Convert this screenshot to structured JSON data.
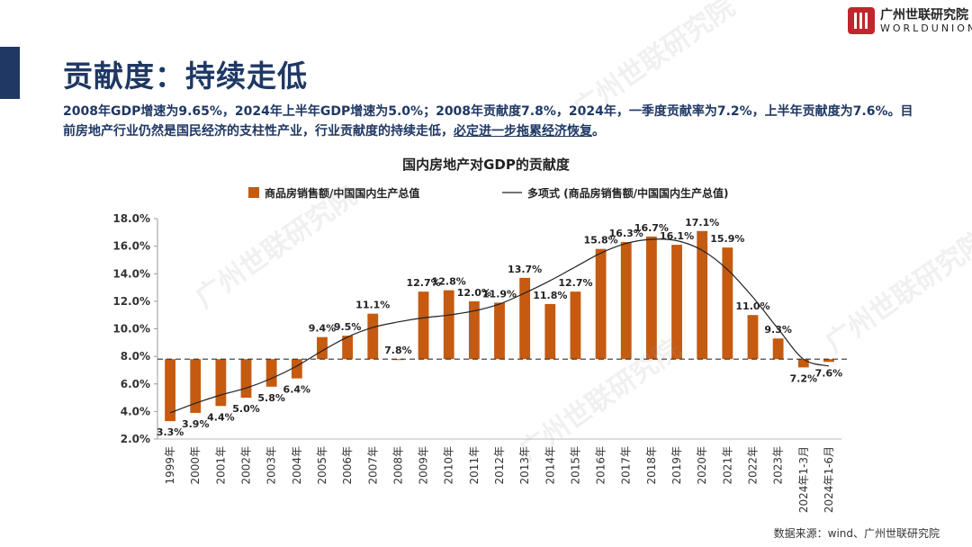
{
  "header": {
    "title": "贡献度：持续走低",
    "desc_main": "2008年GDP增速为9.65%，2024年上半年GDP增速为5.0%；2008年贡献度7.8%，2024年，一季度贡献率为7.2%，上半年贡献度为7.6%。目前房地产行业仍然是国民经济的支柱性产业，行业贡献度的持续走低，",
    "desc_emph": "必定进一步拖累经济恢复",
    "desc_end": "。"
  },
  "logo": {
    "cn": "广州世联研究院",
    "en": "WORLDUNION"
  },
  "watermark": "广州世联研究院",
  "source": "数据来源：wind、广州世联研究院",
  "colors": {
    "bar": "#c55a11",
    "line": "#222222",
    "navy": "#1f3864",
    "brand": "#c0262d"
  },
  "chart_data": {
    "type": "bar",
    "title": "国内房地产对GDP的贡献度",
    "legend": {
      "bar": "商品房销售额/中国国内生产总值",
      "line": "多项式 (商品房销售额/中国国内生产总值)"
    },
    "categories": [
      "1999年",
      "2000年",
      "2001年",
      "2002年",
      "2003年",
      "2004年",
      "2005年",
      "2006年",
      "2007年",
      "2008年",
      "2009年",
      "2010年",
      "2011年",
      "2012年",
      "2013年",
      "2014年",
      "2015年",
      "2016年",
      "2017年",
      "2018年",
      "2019年",
      "2020年",
      "2021年",
      "2022年",
      "2023年",
      "2024年1-3月",
      "2024年1-6月"
    ],
    "values": [
      3.3,
      3.9,
      4.4,
      5.0,
      5.8,
      6.4,
      9.4,
      9.5,
      11.1,
      7.8,
      12.7,
      12.8,
      12.0,
      11.9,
      13.7,
      11.8,
      12.7,
      15.8,
      16.3,
      16.7,
      16.1,
      17.1,
      15.9,
      11.0,
      9.3,
      7.2,
      7.6
    ],
    "labels": [
      "3.3%",
      "3.9%",
      "4.4%",
      "5.0%",
      "5.8%",
      "6.4%",
      "9.4%",
      "9.5%",
      "11.1%",
      "7.8%",
      "12.7%",
      "12.8%",
      "12.0%",
      "11.9%",
      "13.7%",
      "11.8%",
      "12.7%",
      "15.8%",
      "16.3%",
      "16.7%",
      "16.1%",
      "17.1%",
      "15.9%",
      "11.0%",
      "9.3%",
      "7.2%",
      "7.6%"
    ],
    "trend": [
      3.9,
      4.6,
      5.2,
      5.7,
      6.4,
      7.3,
      8.4,
      9.4,
      10.1,
      10.5,
      10.8,
      11.0,
      11.3,
      11.8,
      12.6,
      13.5,
      14.5,
      15.5,
      16.2,
      16.5,
      16.4,
      15.7,
      14.3,
      12.3,
      10.0,
      7.8,
      7.3
    ],
    "baseline": 7.8,
    "ylim": [
      2.0,
      18.0
    ],
    "yticks": [
      "2.0%",
      "4.0%",
      "6.0%",
      "8.0%",
      "10.0%",
      "12.0%",
      "14.0%",
      "16.0%",
      "18.0%"
    ],
    "ytick_values": [
      2,
      4,
      6,
      8,
      10,
      12,
      14,
      16,
      18
    ]
  }
}
